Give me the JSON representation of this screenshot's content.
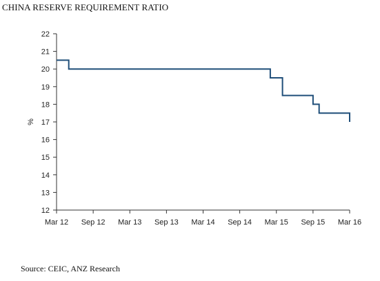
{
  "chart_data": {
    "type": "line",
    "title": "CHINA RESERVE REQUIREMENT RATIO",
    "source": "Source: CEIC, ANZ Research",
    "ylabel": "%",
    "xlabel": "",
    "ylim": [
      12,
      22
    ],
    "yticks": [
      12,
      13,
      14,
      15,
      16,
      17,
      18,
      19,
      20,
      21,
      22
    ],
    "xlim_months": [
      "Mar 12",
      "Mar 16"
    ],
    "xticks": [
      "Mar 12",
      "Sep 12",
      "Mar 13",
      "Sep 13",
      "Mar 14",
      "Sep 14",
      "Mar 15",
      "Sep 15",
      "Mar 16"
    ],
    "grid": false,
    "legend": "none",
    "line_style": "step",
    "color": "#1f4e79",
    "series": [
      {
        "points": [
          {
            "x": "Mar 12",
            "y": 20.5
          },
          {
            "x": "May 12",
            "y": 20.5
          },
          {
            "x": "May 12",
            "y": 20.0
          },
          {
            "x": "Feb 15",
            "y": 20.0
          },
          {
            "x": "Feb 15",
            "y": 19.5
          },
          {
            "x": "Apr 15",
            "y": 19.5
          },
          {
            "x": "Apr 15",
            "y": 18.5
          },
          {
            "x": "Sep 15",
            "y": 18.5
          },
          {
            "x": "Sep 15",
            "y": 18.0
          },
          {
            "x": "Oct 15",
            "y": 18.0
          },
          {
            "x": "Oct 15",
            "y": 17.5
          },
          {
            "x": "Mar 16",
            "y": 17.5
          },
          {
            "x": "Mar 16",
            "y": 17.0
          }
        ]
      }
    ]
  }
}
